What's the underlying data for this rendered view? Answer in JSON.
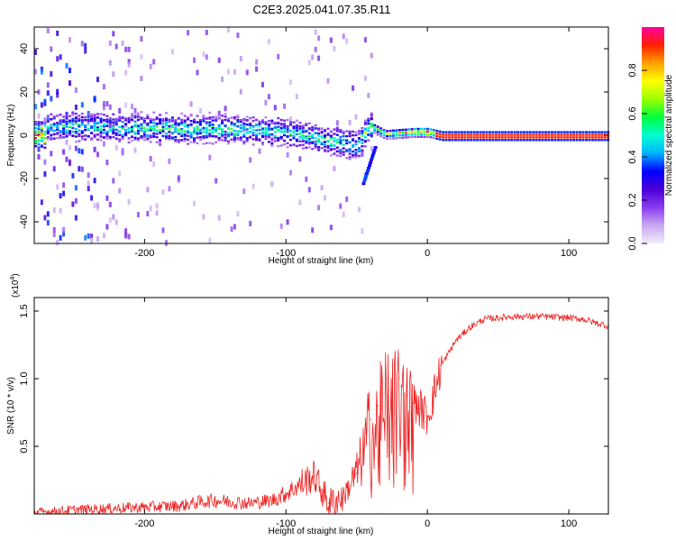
{
  "title": "C2E3.2025.041.07.35.R11",
  "chart_data": [
    {
      "type": "heatmap",
      "panel": "spectrogram",
      "xlabel": "Height of straight line (km)",
      "ylabel": "Frequency (Hz)",
      "xlim": [
        -278,
        128
      ],
      "ylim": [
        -50,
        50
      ],
      "xticks": [
        -200,
        -100,
        0,
        100
      ],
      "xtick_labels": [
        "-200",
        "-100",
        "0",
        "100"
      ],
      "yticks": [
        -40,
        -20,
        0,
        20,
        40
      ],
      "ytick_labels": [
        "-40",
        "-20",
        "0",
        "20",
        "40"
      ],
      "colorbar": {
        "label": "Normalized spectral amplitude",
        "range": [
          0,
          1
        ],
        "ticks": [
          0.0,
          0.2,
          0.4,
          0.6,
          0.8
        ],
        "tick_labels": [
          "0.0",
          "0.2",
          "0.4",
          "0.6",
          "0.8"
        ],
        "colormap": [
          "#f2ecfa",
          "#c9a8ef",
          "#8a3cf0",
          "#4b00d8",
          "#0000ff",
          "#00b4ff",
          "#00ffd0",
          "#00ff40",
          "#9cff00",
          "#ffff00",
          "#ffa000",
          "#ff2000",
          "#ff00a0"
        ]
      },
      "ridge": [
        {
          "x": -270,
          "f": 4.5,
          "a": 0.45
        },
        {
          "x": -250,
          "f": 4.5,
          "a": 0.5
        },
        {
          "x": -225,
          "f": 4.0,
          "a": 0.5
        },
        {
          "x": -200,
          "f": 4.0,
          "a": 0.52
        },
        {
          "x": -175,
          "f": 3.5,
          "a": 0.55
        },
        {
          "x": -150,
          "f": 3.5,
          "a": 0.55
        },
        {
          "x": -125,
          "f": 3.0,
          "a": 0.5
        },
        {
          "x": -100,
          "f": 2.0,
          "a": 0.5
        },
        {
          "x": -80,
          "f": -0.5,
          "a": 0.5
        },
        {
          "x": -65,
          "f": -2.5,
          "a": 0.5
        },
        {
          "x": -50,
          "f": -4.5,
          "a": 0.48
        },
        {
          "x": -42,
          "f": 5.0,
          "a": 0.6
        },
        {
          "x": -30,
          "f": 1.0,
          "a": 0.65
        },
        {
          "x": -20,
          "f": 1.5,
          "a": 0.75
        },
        {
          "x": -10,
          "f": 2.0,
          "a": 0.8
        },
        {
          "x": 0,
          "f": 2.0,
          "a": 0.85
        },
        {
          "x": 10,
          "f": 0.5,
          "a": 0.9
        },
        {
          "x": 128,
          "f": 0.5,
          "a": 0.92
        }
      ]
    },
    {
      "type": "line",
      "panel": "snr",
      "xlabel": "Height of straight line (km)",
      "ylabel": "SNR (10 * v/v)",
      "scale_label": "(x10",
      "scale_exponent": "4",
      "scale_close": ")",
      "xlim": [
        -278,
        128
      ],
      "ylim": [
        0,
        1.6
      ],
      "xticks": [
        -200,
        -100,
        0,
        100
      ],
      "xtick_labels": [
        "-200",
        "-100",
        "0",
        "100"
      ],
      "yticks": [
        0.5,
        1.0,
        1.5
      ],
      "ytick_labels": [
        "0.5",
        "1.0",
        "1.5"
      ],
      "color": "#ee2222",
      "series": [
        {
          "x": [
            -278,
            -250,
            -225,
            -200,
            -175,
            -160,
            -150,
            -125,
            -110,
            -100,
            -90,
            -80,
            -75,
            -70,
            -60,
            -50,
            -45,
            -40,
            -35,
            -30,
            -28,
            -25,
            -20,
            -15,
            -10,
            -5,
            0,
            5,
            10,
            20,
            30,
            40,
            60,
            80,
            100,
            110,
            120,
            128
          ],
          "y": [
            0.01,
            0.03,
            0.04,
            0.05,
            0.06,
            0.09,
            0.1,
            0.08,
            0.1,
            0.15,
            0.22,
            0.28,
            0.18,
            0.08,
            0.12,
            0.3,
            0.45,
            0.7,
            0.8,
            0.9,
            1.0,
            0.9,
            1.0,
            0.88,
            0.82,
            0.78,
            0.72,
            0.9,
            1.1,
            1.28,
            1.38,
            1.44,
            1.46,
            1.46,
            1.45,
            1.44,
            1.41,
            1.39
          ]
        }
      ]
    }
  ]
}
